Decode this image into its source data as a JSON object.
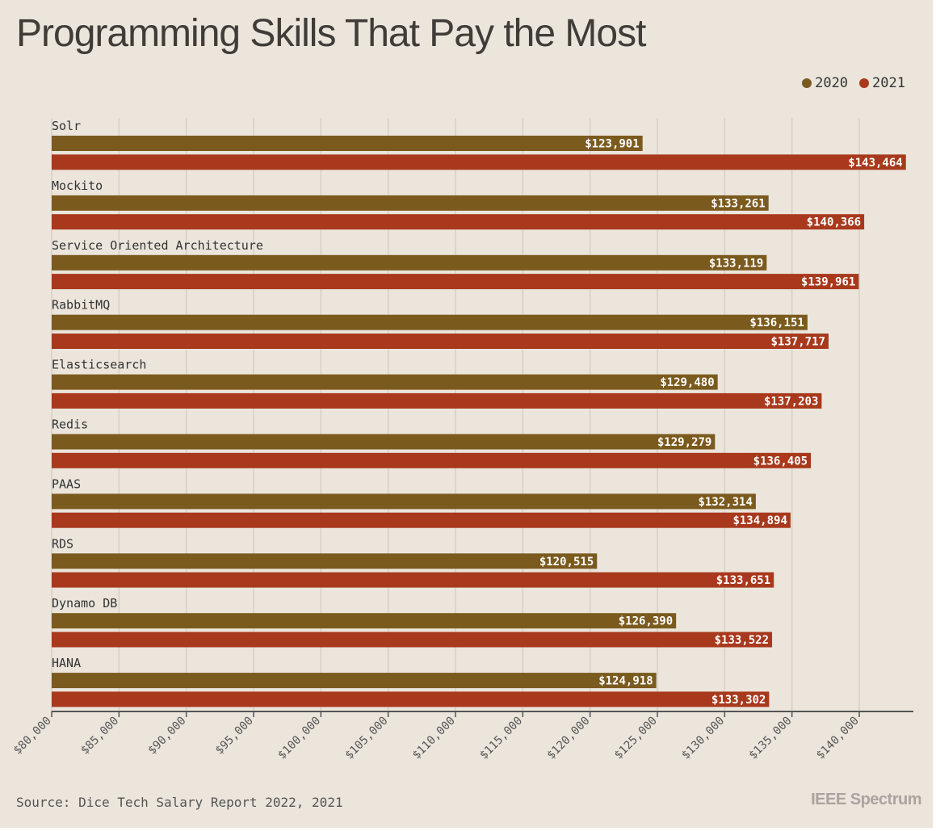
{
  "title": "Programming Skills That Pay the Most",
  "source": "Source: Dice Tech Salary Report 2022, 2021",
  "brand": "IEEE Spectrum",
  "legend": [
    {
      "label": "2020",
      "color": "#7b5a1e"
    },
    {
      "label": "2021",
      "color": "#a8391c"
    }
  ],
  "chart_data": {
    "type": "bar",
    "orientation": "horizontal",
    "title": "Programming Skills That Pay the Most",
    "categories": [
      "Solr",
      "Mockito",
      "Service Oriented Architecture",
      "RabbitMQ",
      "Elasticsearch",
      "Redis",
      "PAAS",
      "RDS",
      "Dynamo DB",
      "HANA"
    ],
    "series": [
      {
        "name": "2020",
        "color": "#7b5a1e",
        "values": [
          123901,
          133261,
          133119,
          136151,
          129480,
          129279,
          132314,
          120515,
          126390,
          124918
        ]
      },
      {
        "name": "2021",
        "color": "#a8391c",
        "values": [
          143464,
          140366,
          139961,
          137717,
          137203,
          136405,
          134894,
          133651,
          133522,
          133302
        ]
      }
    ],
    "xlim": [
      80000,
      144000
    ],
    "x_ticks": [
      80000,
      85000,
      90000,
      95000,
      100000,
      105000,
      110000,
      115000,
      120000,
      125000,
      130000,
      135000,
      140000
    ],
    "grid": true,
    "legend_position": "top-right"
  }
}
